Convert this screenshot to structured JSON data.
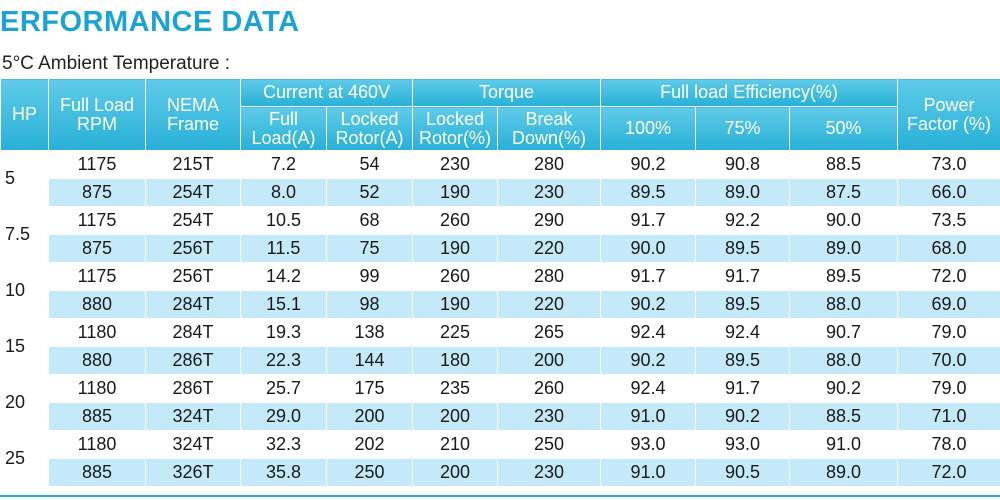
{
  "title": "ERFORMANCE DATA",
  "subtitle": "5°C Ambient Temperature :",
  "headers": {
    "hp": "HP",
    "full_load_rpm": [
      "Full Load",
      "RPM"
    ],
    "nema_frame": [
      "NEMA",
      "Frame"
    ],
    "current_group": "Current at 460V",
    "torque_group": "Torque",
    "efficiency_group": "Full load Efficiency(%)",
    "power_factor": [
      "Power",
      "Factor (%)"
    ],
    "current_full_load": [
      "Full",
      "Load(A)"
    ],
    "current_locked_rotor": [
      "Locked",
      "Rotor(A)"
    ],
    "torque_locked_rotor": [
      "Locked",
      "Rotor(%)"
    ],
    "torque_break_down": [
      "Break",
      "Down(%)"
    ],
    "eff_100": "100%",
    "eff_75": "75%",
    "eff_50": "50%"
  },
  "groups": [
    {
      "hp": "5",
      "rows": [
        [
          "1175",
          "215T",
          "7.2",
          "54",
          "230",
          "280",
          "90.2",
          "90.8",
          "88.5",
          "73.0"
        ],
        [
          "875",
          "254T",
          "8.0",
          "52",
          "190",
          "230",
          "89.5",
          "89.0",
          "87.5",
          "66.0"
        ]
      ]
    },
    {
      "hp": "7.5",
      "rows": [
        [
          "1175",
          "254T",
          "10.5",
          "68",
          "260",
          "290",
          "91.7",
          "92.2",
          "90.0",
          "73.5"
        ],
        [
          "875",
          "256T",
          "11.5",
          "75",
          "190",
          "220",
          "90.0",
          "89.5",
          "89.0",
          "68.0"
        ]
      ]
    },
    {
      "hp": "10",
      "rows": [
        [
          "1175",
          "256T",
          "14.2",
          "99",
          "260",
          "280",
          "91.7",
          "91.7",
          "89.5",
          "72.0"
        ],
        [
          "880",
          "284T",
          "15.1",
          "98",
          "190",
          "220",
          "90.2",
          "89.5",
          "88.0",
          "69.0"
        ]
      ]
    },
    {
      "hp": "15",
      "rows": [
        [
          "1180",
          "284T",
          "19.3",
          "138",
          "225",
          "265",
          "92.4",
          "92.4",
          "90.7",
          "79.0"
        ],
        [
          "880",
          "286T",
          "22.3",
          "144",
          "180",
          "200",
          "90.2",
          "89.5",
          "88.0",
          "70.0"
        ]
      ]
    },
    {
      "hp": "20",
      "rows": [
        [
          "1180",
          "286T",
          "25.7",
          "175",
          "235",
          "260",
          "92.4",
          "91.7",
          "90.2",
          "79.0"
        ],
        [
          "885",
          "324T",
          "29.0",
          "200",
          "200",
          "230",
          "91.0",
          "90.2",
          "88.5",
          "71.0"
        ]
      ]
    },
    {
      "hp": "25",
      "rows": [
        [
          "1180",
          "324T",
          "32.3",
          "202",
          "210",
          "250",
          "93.0",
          "93.0",
          "91.0",
          "78.0"
        ],
        [
          "885",
          "326T",
          "35.8",
          "250",
          "200",
          "230",
          "91.0",
          "90.5",
          "89.0",
          "72.0"
        ]
      ]
    }
  ],
  "colors": {
    "title": "#1aa3d6",
    "header_top": "#5fcbe8",
    "header_bottom": "#28b0d8",
    "row_alt": "#c4e9f8"
  }
}
